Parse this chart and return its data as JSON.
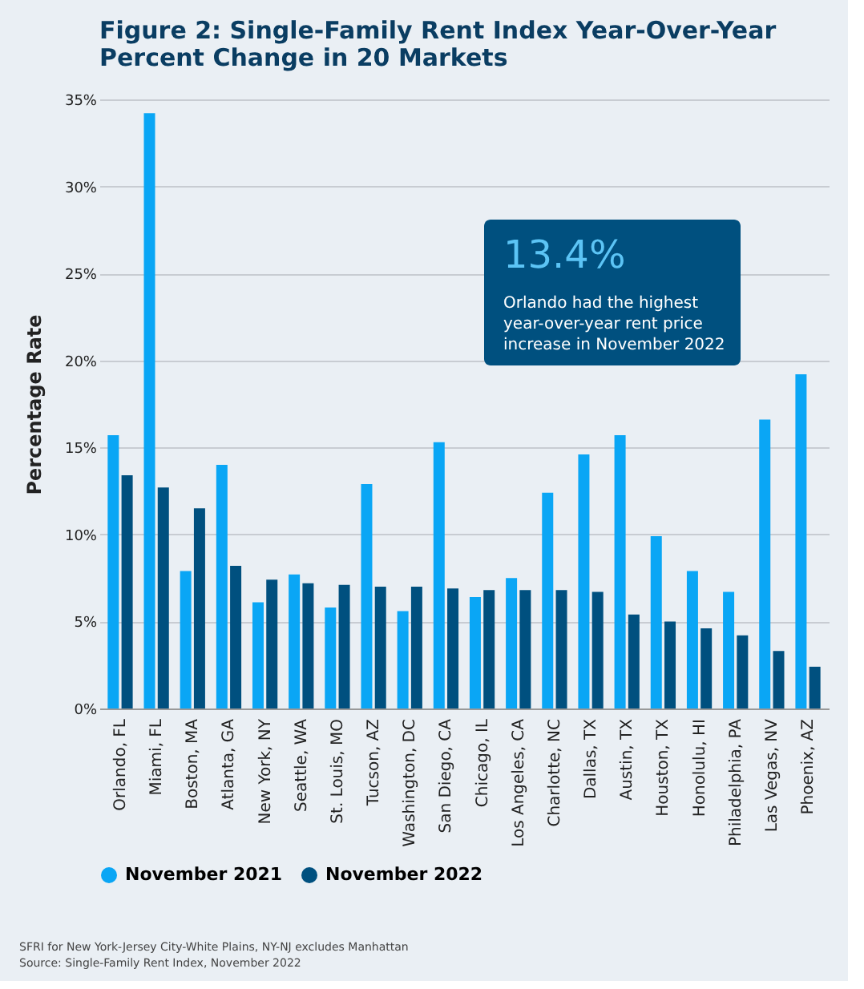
{
  "chart_data": {
    "type": "bar",
    "title": "Figure 2: Single-Family Rent Index Year-Over-Year Percent Change in 20 Markets",
    "ylabel": "Percentage Rate",
    "categories": [
      "Orlando, FL",
      "Miami, FL",
      "Boston, MA",
      "Atlanta, GA",
      "New York, NY",
      "Seattle, WA",
      "St. Louis, MO",
      "Tucson, AZ",
      "Washington, DC",
      "San Diego, CA",
      "Chicago, IL",
      "Los Angeles, CA",
      "Charlotte, NC",
      "Dallas, TX",
      "Austin, TX",
      "Houston, TX",
      "Honolulu, HI",
      "Philadelphia, PA",
      "Las Vegas, NV",
      "Phoenix, AZ"
    ],
    "series": [
      {
        "name": "November 2021",
        "color": "#0aa6f5",
        "values": [
          15.7,
          34.2,
          7.9,
          14.0,
          6.1,
          7.7,
          5.8,
          12.9,
          5.6,
          15.3,
          6.4,
          7.5,
          12.4,
          14.6,
          15.7,
          9.9,
          7.9,
          6.7,
          16.6,
          19.2
        ]
      },
      {
        "name": "November 2022",
        "color": "#00507f",
        "values": [
          13.4,
          12.7,
          11.5,
          8.2,
          7.4,
          7.2,
          7.1,
          7.0,
          7.0,
          6.9,
          6.8,
          6.8,
          6.8,
          6.7,
          5.4,
          5.0,
          4.6,
          4.2,
          3.3,
          2.4
        ]
      }
    ],
    "ylim": [
      0,
      35
    ],
    "yticks": [
      {
        "value": 0,
        "label": "0%"
      },
      {
        "value": 5,
        "label": "5%"
      },
      {
        "value": 10,
        "label": "10%"
      },
      {
        "value": 15,
        "label": "15%"
      },
      {
        "value": 20,
        "label": "20%"
      },
      {
        "value": 25,
        "label": "25%"
      },
      {
        "value": 30,
        "label": "30%"
      },
      {
        "value": 35,
        "label": "35%"
      }
    ],
    "grid": "y",
    "legend": "bottom",
    "annotations": [
      "13.4%",
      "Orlando had the highest year-over-year rent price increase in November 2022",
      "SFRI for New York-Jersey City-White Plains, NY-NJ excludes Manhattan",
      "Source: Single-Family Rent Index, November 2022"
    ]
  }
}
